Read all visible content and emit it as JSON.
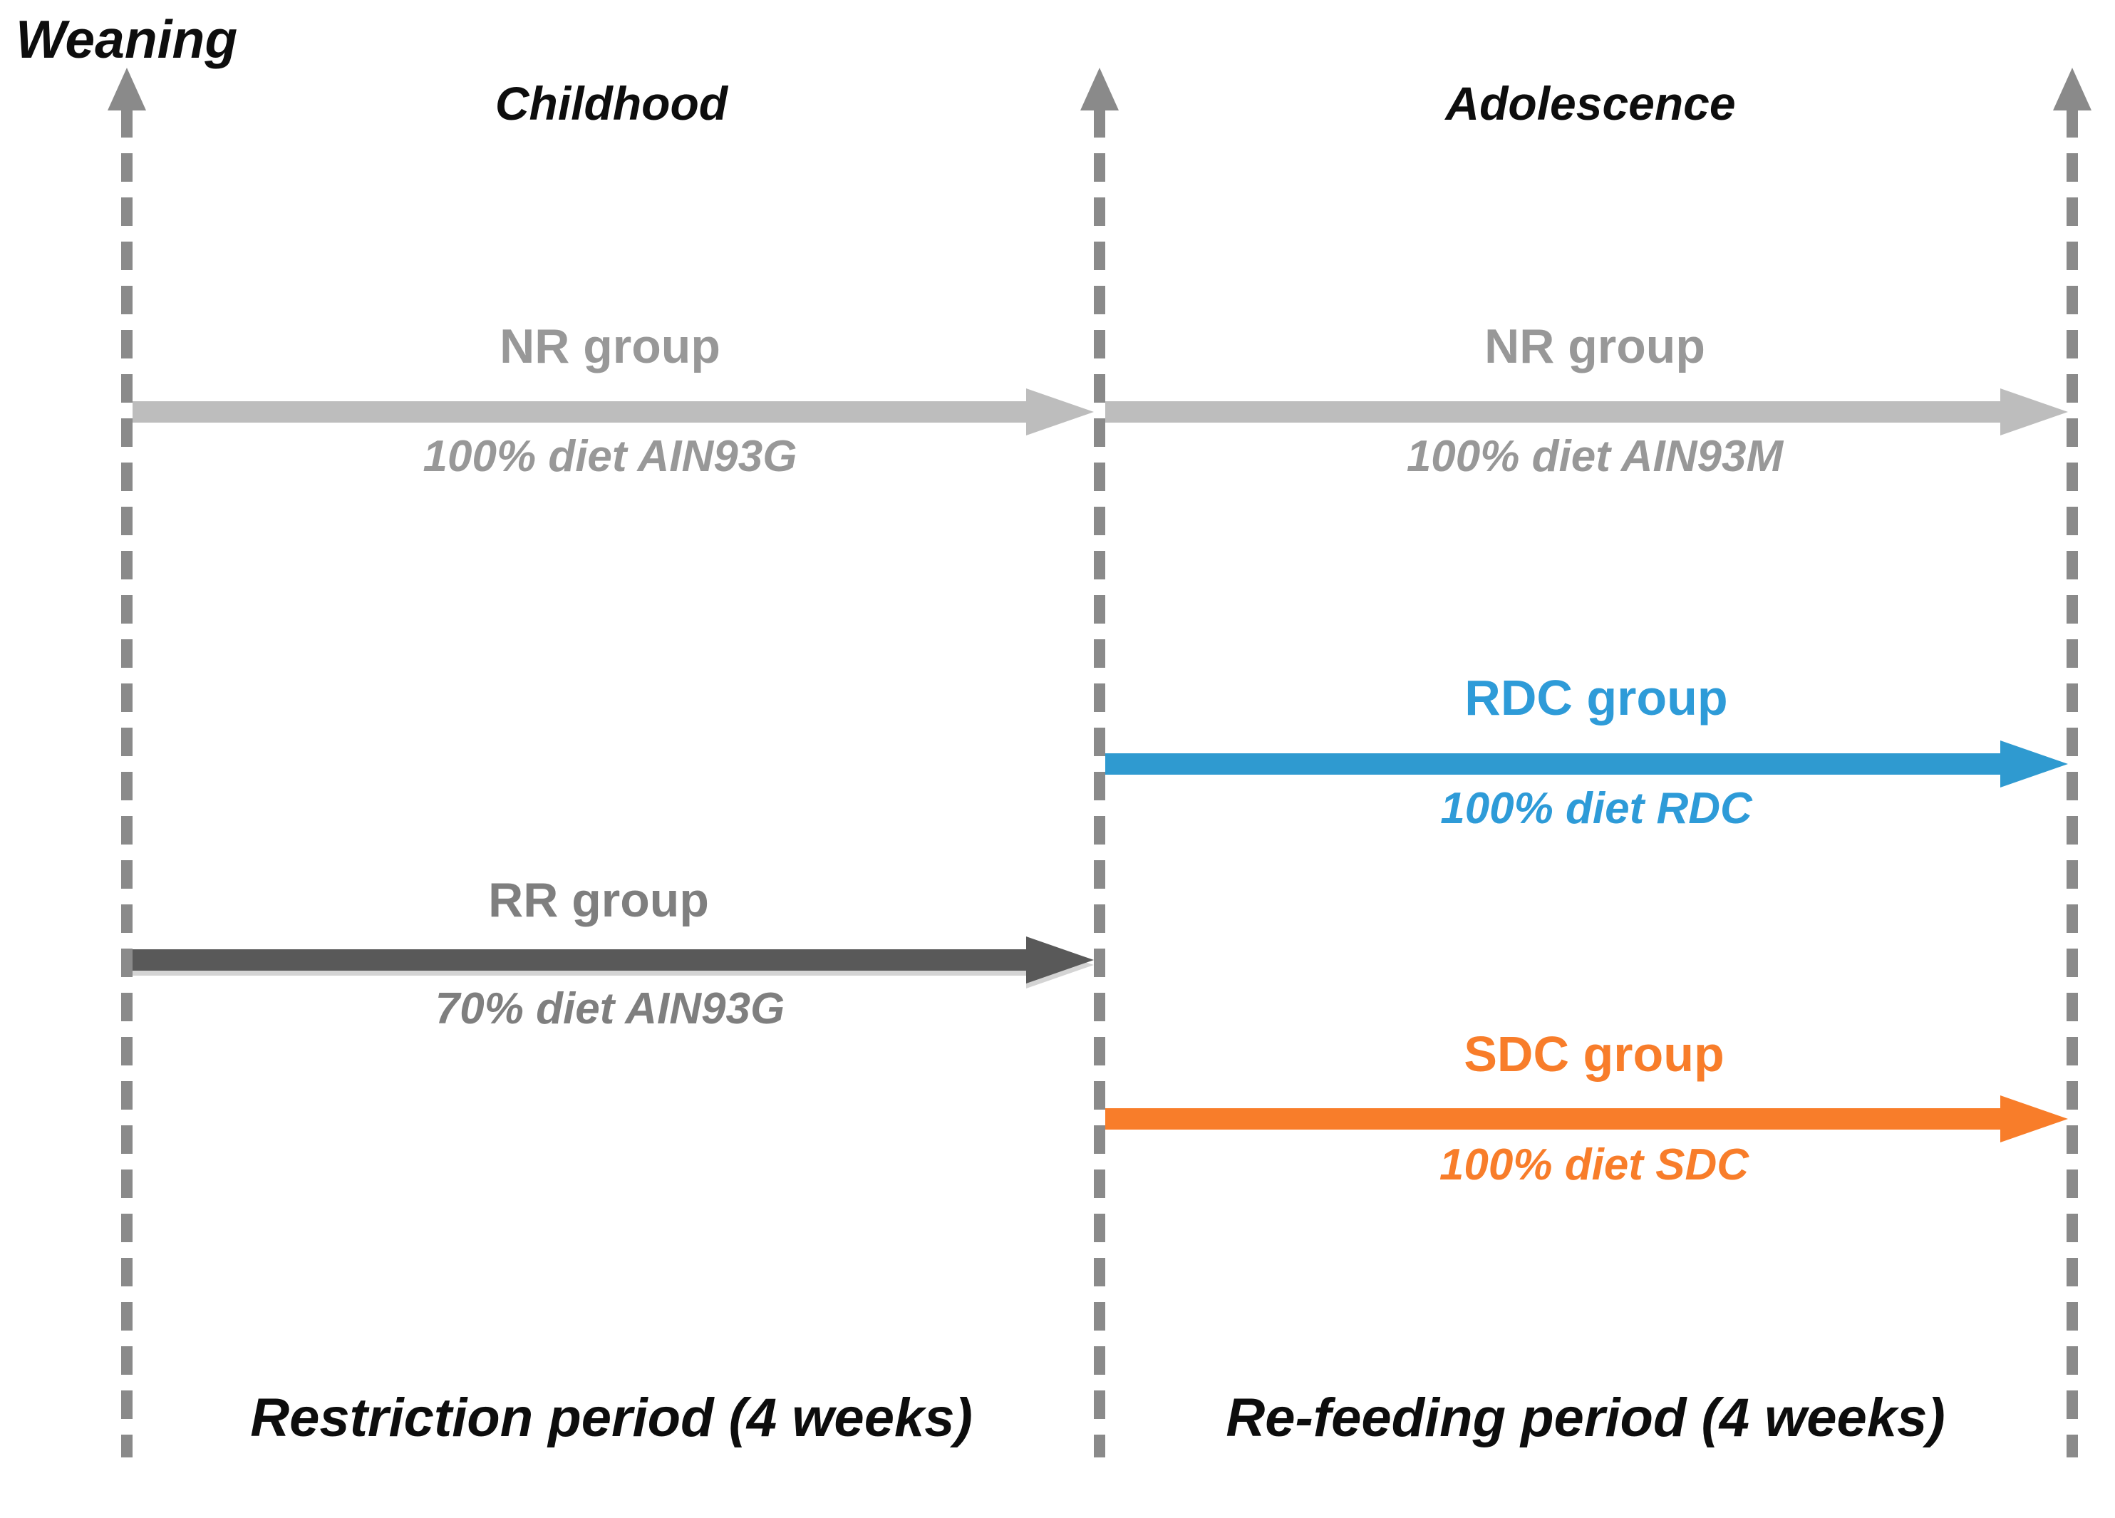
{
  "figure": {
    "weaning_label": "Weaning",
    "childhood_label": "Childhood",
    "adolescence_label": "Adolescence",
    "restriction_footer": "Restriction period (4 weeks)",
    "refeeding_footer": "Re-feeding period (4 weeks)"
  },
  "groups": {
    "nr_childhood": {
      "name": "NR group",
      "diet": "100% diet AIN93G"
    },
    "nr_adolescence": {
      "name": "NR group",
      "diet": "100% diet AIN93M"
    },
    "rdc": {
      "name": "RDC group",
      "diet": "100% diet RDC"
    },
    "rr": {
      "name": "RR group",
      "diet": "70% diet AIN93G"
    },
    "sdc": {
      "name": "SDC group",
      "diet": "100% diet SDC"
    }
  },
  "colors": {
    "nr_arrow": "#bdbdbd",
    "nr_text": "#989898",
    "rr_arrow": "#595959",
    "rr_text": "#7f7f7f",
    "rdc_accent": "#2f9ad0",
    "sdc_accent": "#f87d2a",
    "timeline_gray": "#8a8a8a",
    "heading_text": "#0d0d0d"
  }
}
